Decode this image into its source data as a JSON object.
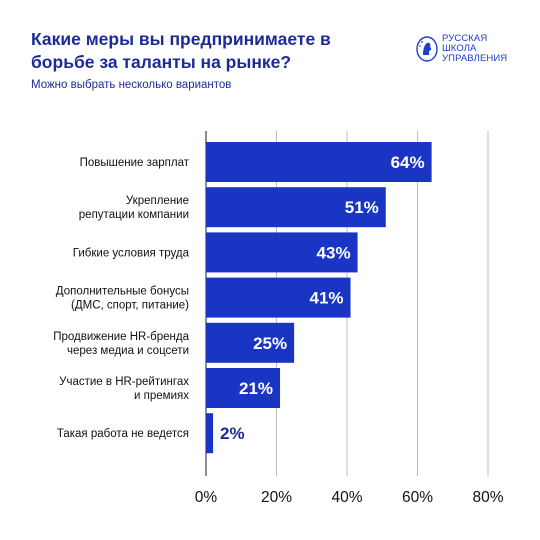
{
  "header": {
    "title": "Какие меры вы предпринимаете в борьбе за таланты на рынке?",
    "subtitle": "Можно выбрать несколько вариантов"
  },
  "logo": {
    "icon": "portrait-emblem-icon",
    "line1": "РУССКАЯ",
    "line2": "ШКОЛА",
    "line3": "УПРАВЛЕНИЯ"
  },
  "colors": {
    "bar": "#1a35c4",
    "text": "#1c2b99",
    "grid": "#bdbdbd"
  },
  "chart_data": {
    "type": "bar",
    "orientation": "horizontal",
    "categories": [
      [
        "Повышение зарплат"
      ],
      [
        "Укрепление",
        "репутации компании"
      ],
      [
        "Гибкие условия труда"
      ],
      [
        "Дополнительные бонусы",
        "(ДМС, спорт, питание)"
      ],
      [
        "Продвижение HR-бренда",
        "через медиа и соцсети"
      ],
      [
        "Участие в HR-рейтингах",
        "и премиях"
      ],
      [
        "Такая работа не ведется"
      ]
    ],
    "values": [
      64,
      51,
      43,
      41,
      25,
      21,
      2
    ],
    "value_labels": [
      "64%",
      "51%",
      "43%",
      "41%",
      "25%",
      "21%",
      "2%"
    ],
    "xlim": [
      0,
      80
    ],
    "xticks": [
      0,
      20,
      40,
      60,
      80
    ],
    "xtick_labels": [
      "0%",
      "20%",
      "40%",
      "60%",
      "80%"
    ],
    "grid": true
  }
}
